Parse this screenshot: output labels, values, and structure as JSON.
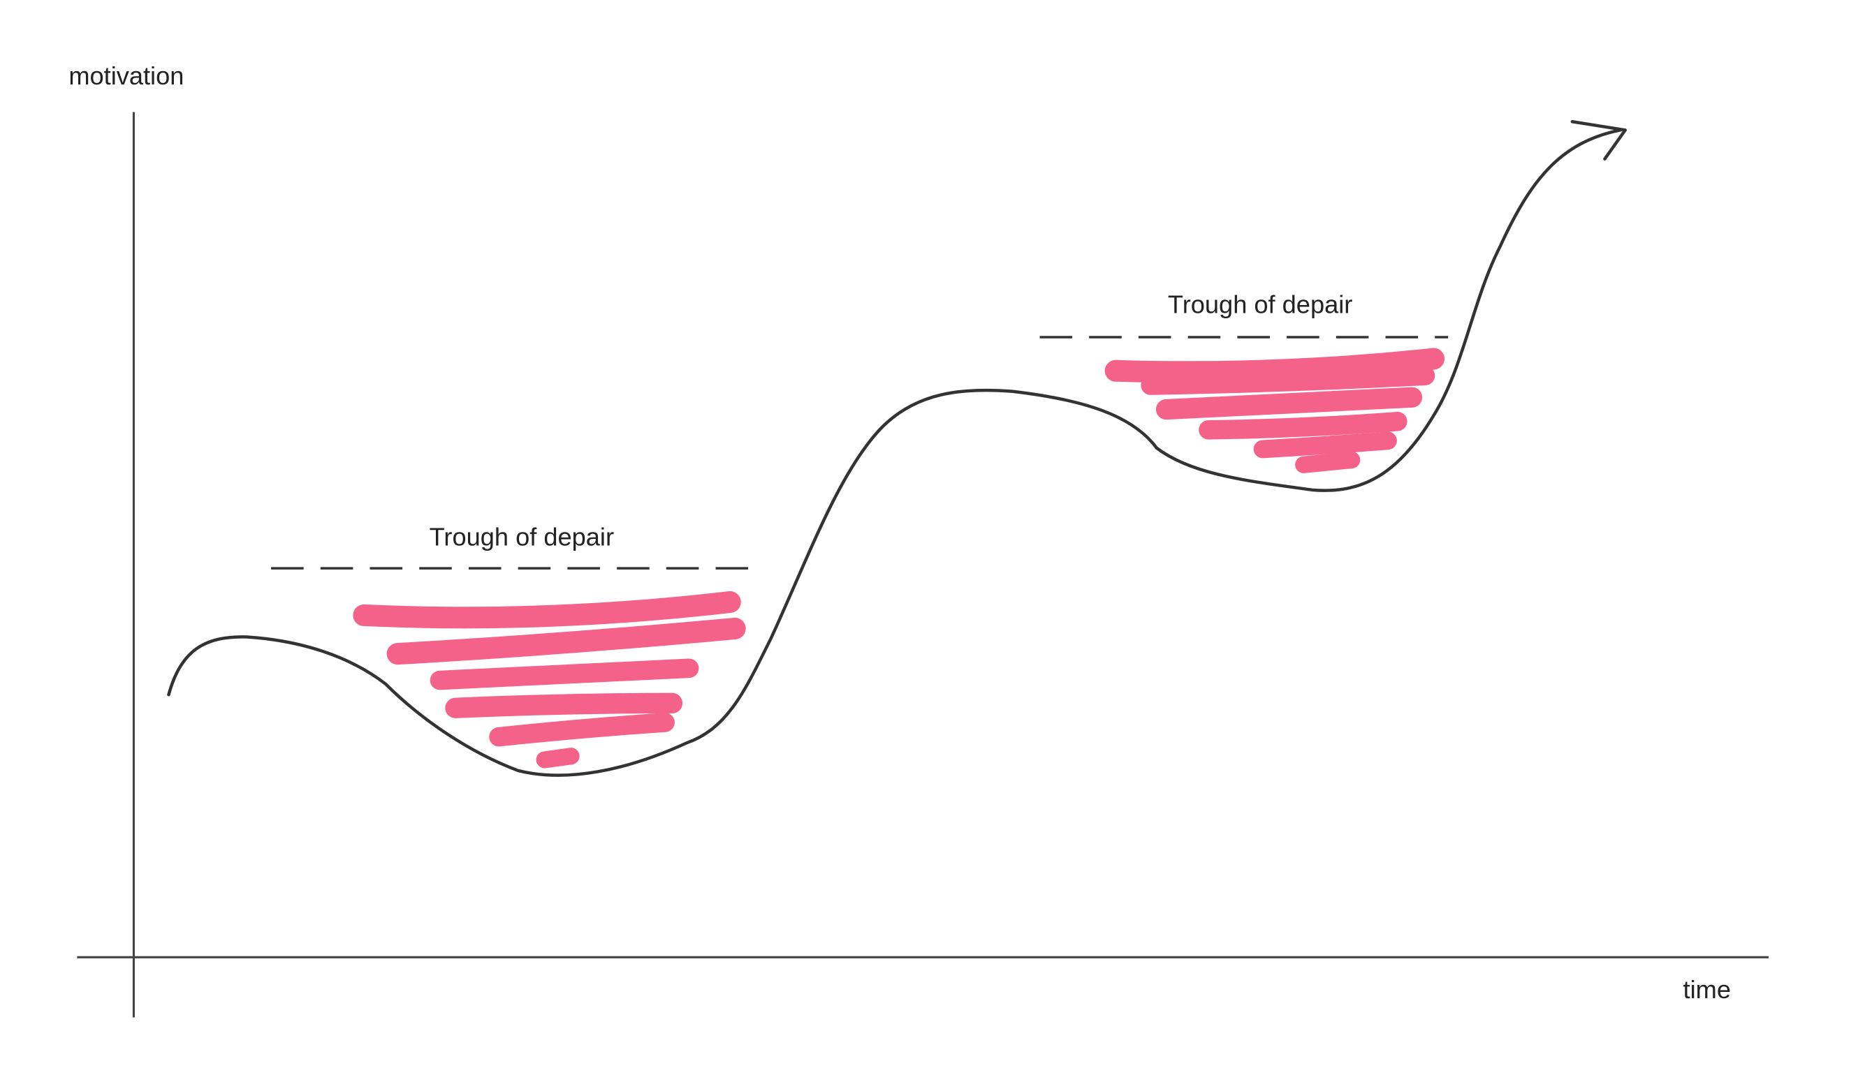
{
  "axes": {
    "y_label": "motivation",
    "x_label": "time"
  },
  "annotations": [
    {
      "label": "Trough of depair"
    },
    {
      "label": "Trough of depair"
    }
  ]
}
